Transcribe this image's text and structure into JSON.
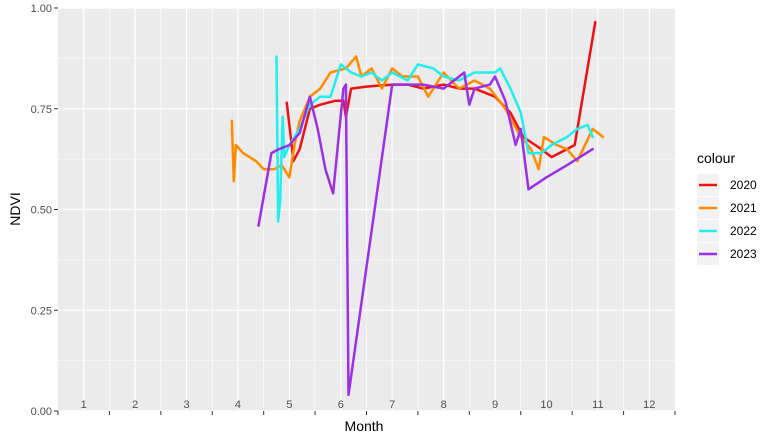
{
  "chart_data": {
    "type": "line",
    "xlabel": "Month",
    "ylabel": "NDVI",
    "ylim": [
      0,
      1
    ],
    "y_ticks": [
      0,
      0.25,
      0.5,
      0.75,
      1
    ],
    "y_tick_labels": [
      "0.00",
      "0.25",
      "0.50",
      "0.75",
      "1.00"
    ],
    "x_tick_labels": [
      "1",
      "2",
      "3",
      "4",
      "5",
      "6",
      "7",
      "8",
      "9",
      "10",
      "11",
      "12"
    ],
    "grid": true,
    "legend": {
      "title": "colour",
      "position": "right"
    },
    "series": [
      {
        "name": "2020",
        "color": "#ee1111",
        "points": [
          [
            4.95,
            0.765
          ],
          [
            5.08,
            0.62
          ],
          [
            5.2,
            0.65
          ],
          [
            5.4,
            0.75
          ],
          [
            5.6,
            0.76
          ],
          [
            5.9,
            0.77
          ],
          [
            6.05,
            0.77
          ],
          [
            6.1,
            0.73
          ],
          [
            6.2,
            0.8
          ],
          [
            6.5,
            0.805
          ],
          [
            7.0,
            0.81
          ],
          [
            7.3,
            0.81
          ],
          [
            7.6,
            0.8
          ],
          [
            8.0,
            0.81
          ],
          [
            8.3,
            0.8
          ],
          [
            8.6,
            0.8
          ],
          [
            9.0,
            0.78
          ],
          [
            9.3,
            0.74
          ],
          [
            9.55,
            0.68
          ],
          [
            9.9,
            0.65
          ],
          [
            10.1,
            0.63
          ],
          [
            10.4,
            0.65
          ],
          [
            10.55,
            0.66
          ],
          [
            10.95,
            0.965
          ]
        ]
      },
      {
        "name": "2021",
        "color": "#ff8c00",
        "points": [
          [
            3.88,
            0.72
          ],
          [
            3.92,
            0.57
          ],
          [
            3.96,
            0.66
          ],
          [
            4.1,
            0.64
          ],
          [
            4.35,
            0.62
          ],
          [
            4.5,
            0.6
          ],
          [
            4.7,
            0.6
          ],
          [
            4.85,
            0.61
          ],
          [
            5.0,
            0.58
          ],
          [
            5.1,
            0.66
          ],
          [
            5.2,
            0.72
          ],
          [
            5.4,
            0.78
          ],
          [
            5.6,
            0.8
          ],
          [
            5.8,
            0.84
          ],
          [
            6.1,
            0.85
          ],
          [
            6.3,
            0.88
          ],
          [
            6.4,
            0.83
          ],
          [
            6.6,
            0.85
          ],
          [
            6.8,
            0.8
          ],
          [
            7.0,
            0.85
          ],
          [
            7.2,
            0.83
          ],
          [
            7.5,
            0.83
          ],
          [
            7.7,
            0.78
          ],
          [
            8.0,
            0.84
          ],
          [
            8.3,
            0.8
          ],
          [
            8.6,
            0.82
          ],
          [
            8.9,
            0.8
          ],
          [
            9.2,
            0.75
          ],
          [
            9.5,
            0.68
          ],
          [
            9.7,
            0.65
          ],
          [
            9.85,
            0.6
          ],
          [
            9.95,
            0.68
          ],
          [
            10.2,
            0.66
          ],
          [
            10.4,
            0.65
          ],
          [
            10.6,
            0.62
          ],
          [
            10.9,
            0.7
          ],
          [
            11.1,
            0.68
          ]
        ]
      },
      {
        "name": "2022",
        "color": "#22eeee",
        "points": [
          [
            4.75,
            0.88
          ],
          [
            4.78,
            0.47
          ],
          [
            4.82,
            0.52
          ],
          [
            4.87,
            0.73
          ],
          [
            4.9,
            0.63
          ],
          [
            5.0,
            0.66
          ],
          [
            5.2,
            0.7
          ],
          [
            5.4,
            0.76
          ],
          [
            5.6,
            0.78
          ],
          [
            5.8,
            0.78
          ],
          [
            6.0,
            0.86
          ],
          [
            6.2,
            0.84
          ],
          [
            6.4,
            0.83
          ],
          [
            6.6,
            0.84
          ],
          [
            6.8,
            0.82
          ],
          [
            7.0,
            0.84
          ],
          [
            7.3,
            0.82
          ],
          [
            7.5,
            0.86
          ],
          [
            7.8,
            0.85
          ],
          [
            8.0,
            0.83
          ],
          [
            8.3,
            0.82
          ],
          [
            8.6,
            0.84
          ],
          [
            9.0,
            0.84
          ],
          [
            9.1,
            0.85
          ],
          [
            9.3,
            0.8
          ],
          [
            9.5,
            0.74
          ],
          [
            9.65,
            0.64
          ],
          [
            9.9,
            0.64
          ],
          [
            10.1,
            0.66
          ],
          [
            10.4,
            0.68
          ],
          [
            10.6,
            0.7
          ],
          [
            10.8,
            0.71
          ],
          [
            10.9,
            0.68
          ]
        ]
      },
      {
        "name": "2023",
        "color": "#9b30e6",
        "points": [
          [
            4.4,
            0.46
          ],
          [
            4.65,
            0.64
          ],
          [
            4.8,
            0.65
          ],
          [
            5.0,
            0.66
          ],
          [
            5.2,
            0.69
          ],
          [
            5.4,
            0.78
          ],
          [
            5.55,
            0.7
          ],
          [
            5.7,
            0.6
          ],
          [
            5.85,
            0.54
          ],
          [
            6.05,
            0.8
          ],
          [
            6.1,
            0.81
          ],
          [
            6.15,
            0.04
          ],
          [
            7.0,
            0.81
          ],
          [
            7.3,
            0.81
          ],
          [
            7.6,
            0.81
          ],
          [
            8.0,
            0.8
          ],
          [
            8.4,
            0.84
          ],
          [
            8.5,
            0.76
          ],
          [
            8.6,
            0.8
          ],
          [
            8.9,
            0.81
          ],
          [
            9.0,
            0.83
          ],
          [
            9.2,
            0.77
          ],
          [
            9.4,
            0.66
          ],
          [
            9.5,
            0.7
          ],
          [
            9.65,
            0.55
          ],
          [
            10.0,
            0.58
          ],
          [
            10.4,
            0.61
          ],
          [
            10.9,
            0.65
          ]
        ]
      }
    ]
  }
}
